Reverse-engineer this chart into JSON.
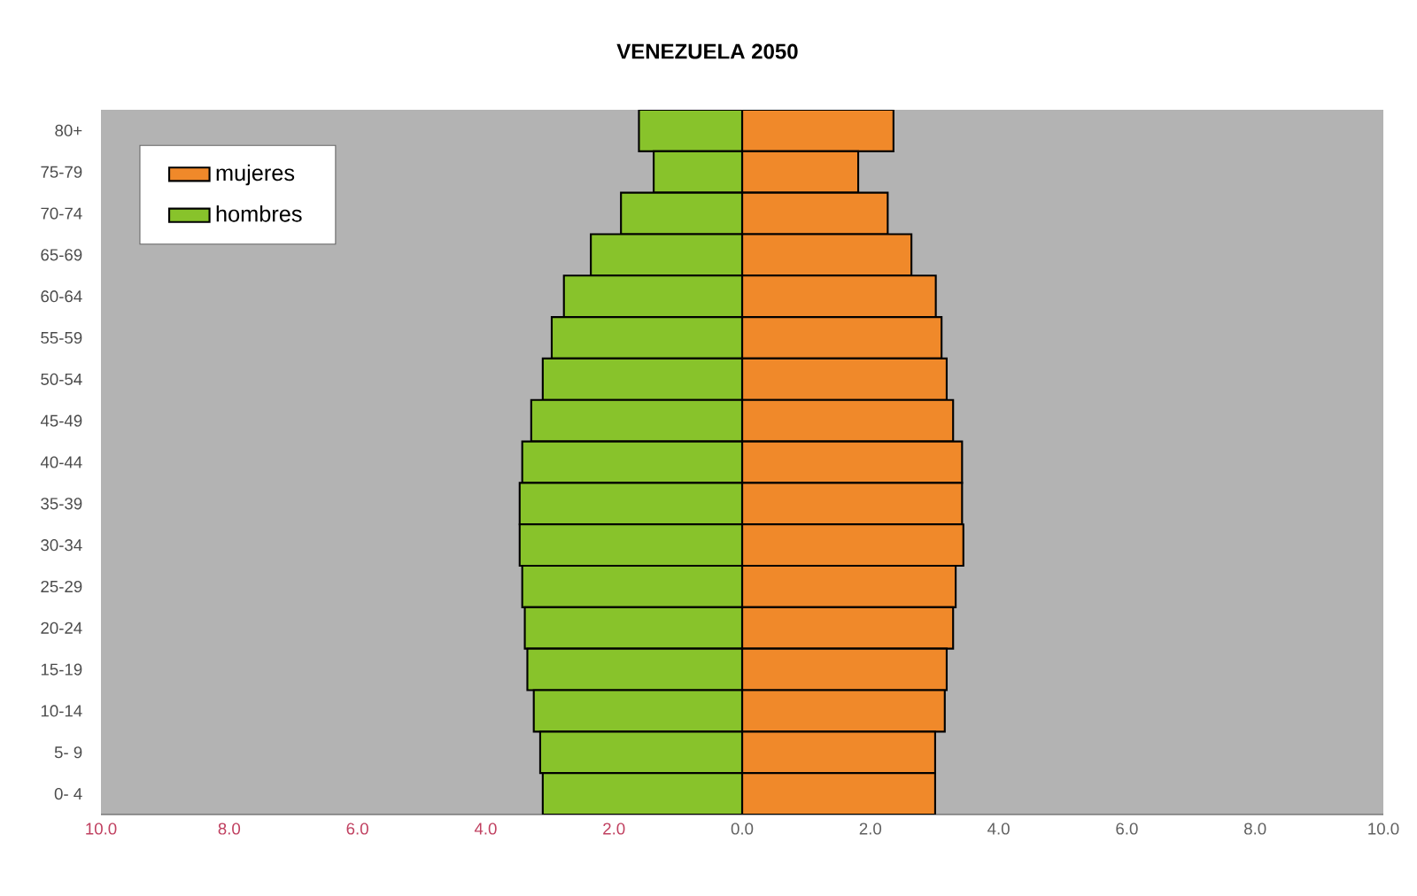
{
  "chart_data": {
    "type": "bar",
    "orientation": "horizontal",
    "title": "VENEZUELA 2050",
    "categories": [
      "80+",
      "75-79",
      "70-74",
      "65-69",
      "60-64",
      "55-59",
      "50-54",
      "45-49",
      "40-44",
      "35-39",
      "30-34",
      "25-29",
      "20-24",
      "15-19",
      "10-14",
      "5- 9",
      "0- 4"
    ],
    "series": [
      {
        "name": "mujeres",
        "color": "#f0892a",
        "values": [
          2.36,
          1.81,
          2.27,
          2.64,
          3.02,
          3.11,
          3.19,
          3.29,
          3.43,
          3.43,
          3.45,
          3.33,
          3.29,
          3.19,
          3.16,
          3.01,
          3.01
        ]
      },
      {
        "name": "hombres",
        "color": "#88c32b",
        "values": [
          -1.61,
          -1.38,
          -1.89,
          -2.36,
          -2.78,
          -2.97,
          -3.11,
          -3.29,
          -3.43,
          -3.47,
          -3.47,
          -3.43,
          -3.39,
          -3.35,
          -3.25,
          -3.15,
          -3.11
        ]
      }
    ],
    "xlim": [
      -10,
      10
    ],
    "xticks": [
      {
        "value": -10,
        "label": "10.0"
      },
      {
        "value": -8,
        "label": "8.0"
      },
      {
        "value": -6,
        "label": "6.0"
      },
      {
        "value": -4,
        "label": "4.0"
      },
      {
        "value": -2,
        "label": "2.0"
      },
      {
        "value": 0,
        "label": "0.0"
      },
      {
        "value": 2,
        "label": "2.0"
      },
      {
        "value": 4,
        "label": "4.0"
      },
      {
        "value": 6,
        "label": "6.0"
      },
      {
        "value": 8,
        "label": "8.0"
      },
      {
        "value": 10,
        "label": "10.0"
      }
    ],
    "stacked": true,
    "grid": false,
    "legend": "top left"
  }
}
